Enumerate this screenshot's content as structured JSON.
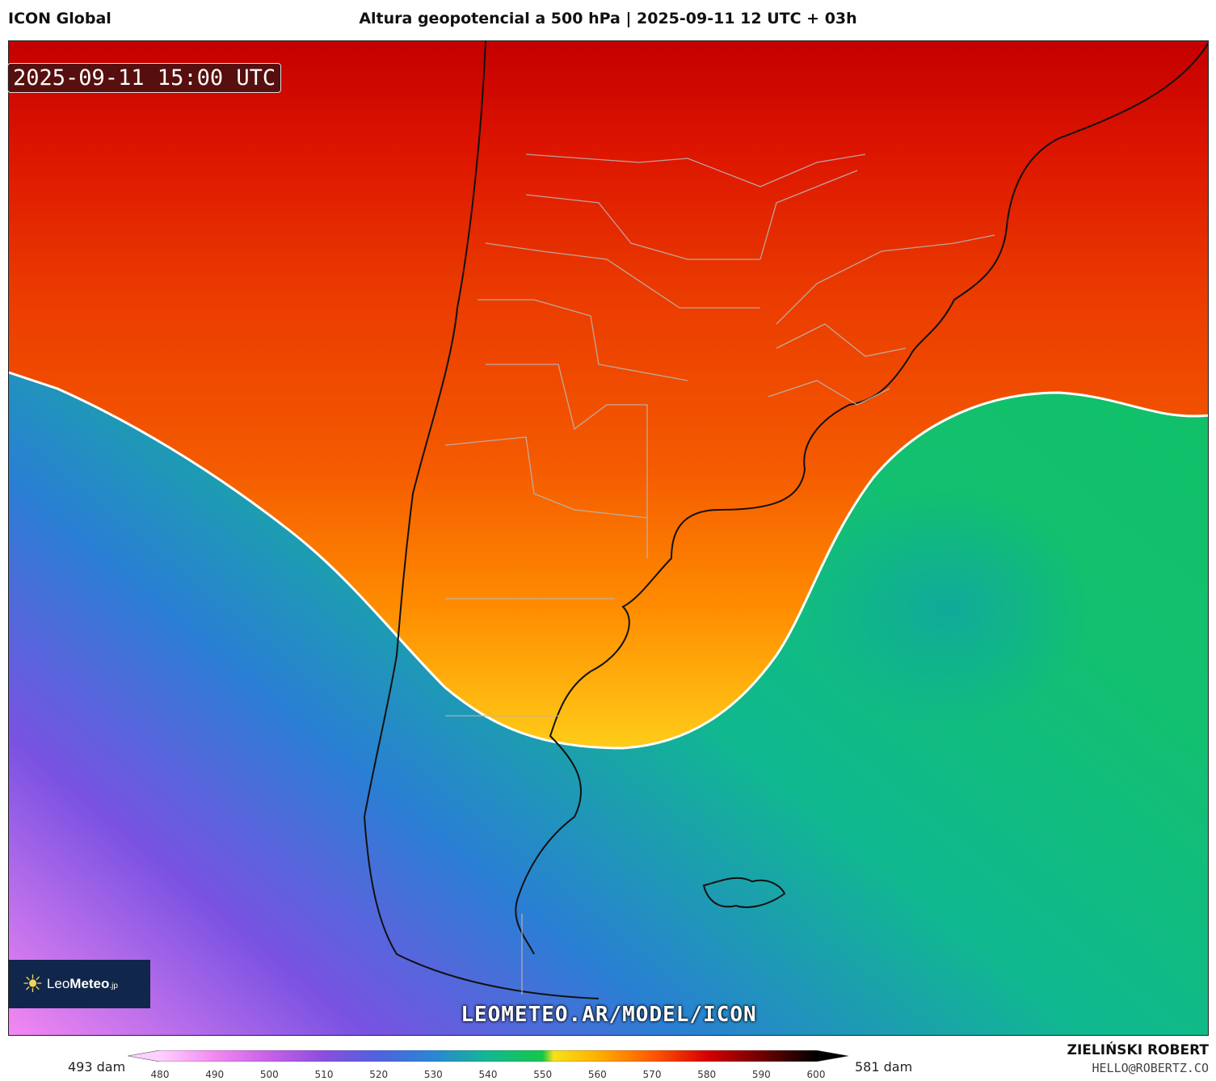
{
  "header": {
    "model": "ICON Global",
    "title": "Altura geopotencial a 500 hPa | 2025-09-11 12 UTC + 03h"
  },
  "map": {
    "valid_time": "2025-09-11 15:00 UTC",
    "watermark_url": "LEOMETEO.AR/MODEL/ICON",
    "logo_name_light": "Leo",
    "logo_name_bold": "Meteo",
    "logo_suffix": ".jp",
    "logo_icon": "sun-icon",
    "highlighted_contour_dam": 552,
    "colors": {
      "deep_red": "#c80000",
      "red": "#e02000",
      "orange_red": "#f04a00",
      "orange": "#ff8a00",
      "yellow": "#ffd21a",
      "green": "#18c858",
      "teal": "#10b890",
      "blue": "#2a6fd0",
      "purple": "#8a4ee0",
      "pink": "#f07af0"
    }
  },
  "colorbar": {
    "min_label": "493 dam",
    "max_label": "581 dam",
    "ticks": [
      "480",
      "490",
      "500",
      "510",
      "520",
      "530",
      "540",
      "550",
      "560",
      "570",
      "580",
      "590",
      "600"
    ],
    "stops": [
      {
        "v": 480,
        "c": "#ffd0ff"
      },
      {
        "v": 490,
        "c": "#f08af0"
      },
      {
        "v": 500,
        "c": "#c860e8"
      },
      {
        "v": 510,
        "c": "#8a4ee0"
      },
      {
        "v": 520,
        "c": "#4e62e0"
      },
      {
        "v": 530,
        "c": "#2a86d8"
      },
      {
        "v": 540,
        "c": "#12b890"
      },
      {
        "v": 550,
        "c": "#14c848"
      },
      {
        "v": 552,
        "c": "#f6e21a"
      },
      {
        "v": 560,
        "c": "#ffb000"
      },
      {
        "v": 570,
        "c": "#ff5a00"
      },
      {
        "v": 580,
        "c": "#d80000"
      },
      {
        "v": 590,
        "c": "#700000"
      },
      {
        "v": 600,
        "c": "#000000"
      }
    ]
  },
  "credits": {
    "author": "ZIELIŃSKI ROBERT",
    "email": "HELLO@ROBERTZ.CO"
  }
}
